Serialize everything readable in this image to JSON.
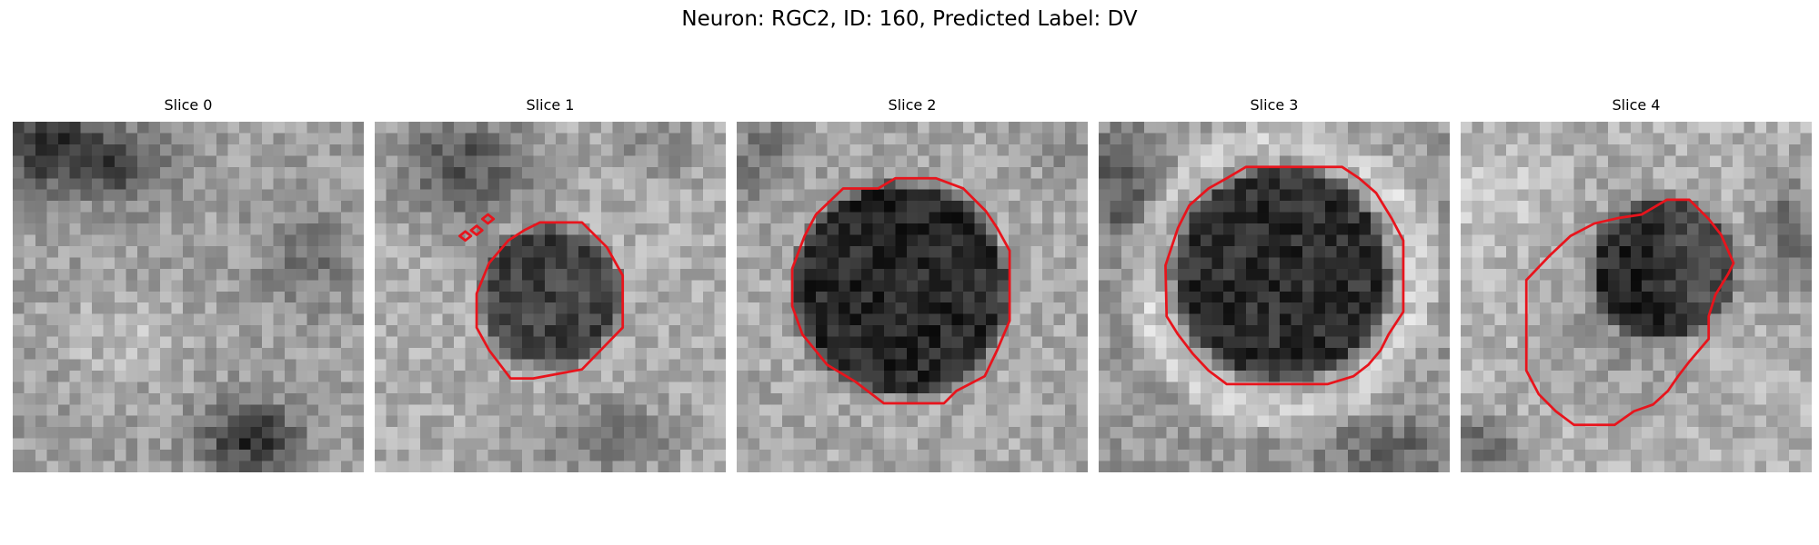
{
  "figure": {
    "suptitle": "Neuron: RGC2, ID: 160, Predicted Label: DV"
  },
  "panels": [
    {
      "title": "Slice 0"
    },
    {
      "title": "Slice 1"
    },
    {
      "title": "Slice 2"
    },
    {
      "title": "Slice 3"
    },
    {
      "title": "Slice 4"
    }
  ],
  "colors": {
    "contour": "#e8141c",
    "background": "#ffffff"
  }
}
